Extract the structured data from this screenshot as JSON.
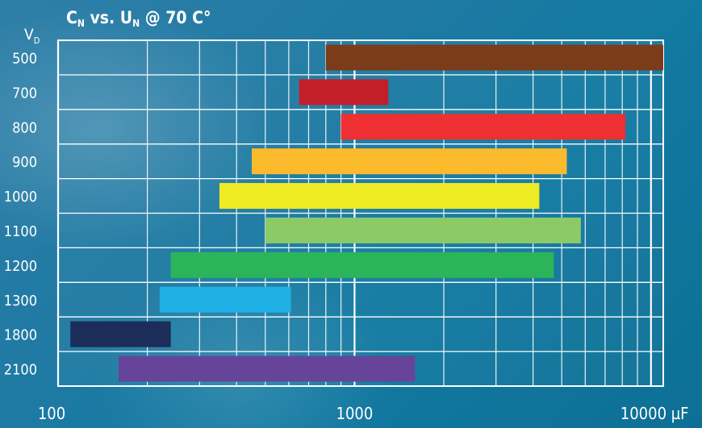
{
  "chart_data": {
    "type": "bar",
    "orientation": "horizontal",
    "title": {
      "c": "C",
      "c_sub": "N",
      "mid": " vs. U",
      "u_sub": "N",
      "rest": " @ 70  C°"
    },
    "ylabel": {
      "main": "V",
      "sub": "D"
    },
    "xscale": "log",
    "xlim": [
      100,
      11000
    ],
    "x_ticks": [
      {
        "value": 100,
        "label": "100"
      },
      {
        "value": 1000,
        "label": "1000"
      },
      {
        "value": 10000,
        "label": "10000 µF"
      }
    ],
    "categories": [
      "500",
      "700",
      "800",
      "900",
      "1000",
      "1100",
      "1200",
      "1300",
      "1800",
      "2100"
    ],
    "ranges": [
      {
        "category": "500",
        "min": 800,
        "max": 11000,
        "color": "#7b3c1b"
      },
      {
        "category": "700",
        "min": 650,
        "max": 1300,
        "color": "#c21f2a"
      },
      {
        "category": "800",
        "min": 900,
        "max": 8200,
        "color": "#ee3032"
      },
      {
        "category": "900",
        "min": 450,
        "max": 5200,
        "color": "#fbba2b"
      },
      {
        "category": "1000",
        "min": 350,
        "max": 4200,
        "color": "#eeea24"
      },
      {
        "category": "1100",
        "min": 500,
        "max": 5800,
        "color": "#8cc967"
      },
      {
        "category": "1200",
        "min": 240,
        "max": 4700,
        "color": "#2bb45a"
      },
      {
        "category": "1300",
        "min": 220,
        "max": 610,
        "color": "#1fb0e6"
      },
      {
        "category": "1800",
        "min": 110,
        "max": 240,
        "color": "#1c2d5a"
      },
      {
        "category": "2100",
        "min": 160,
        "max": 1600,
        "color": "#66449a"
      }
    ],
    "grid": true
  }
}
